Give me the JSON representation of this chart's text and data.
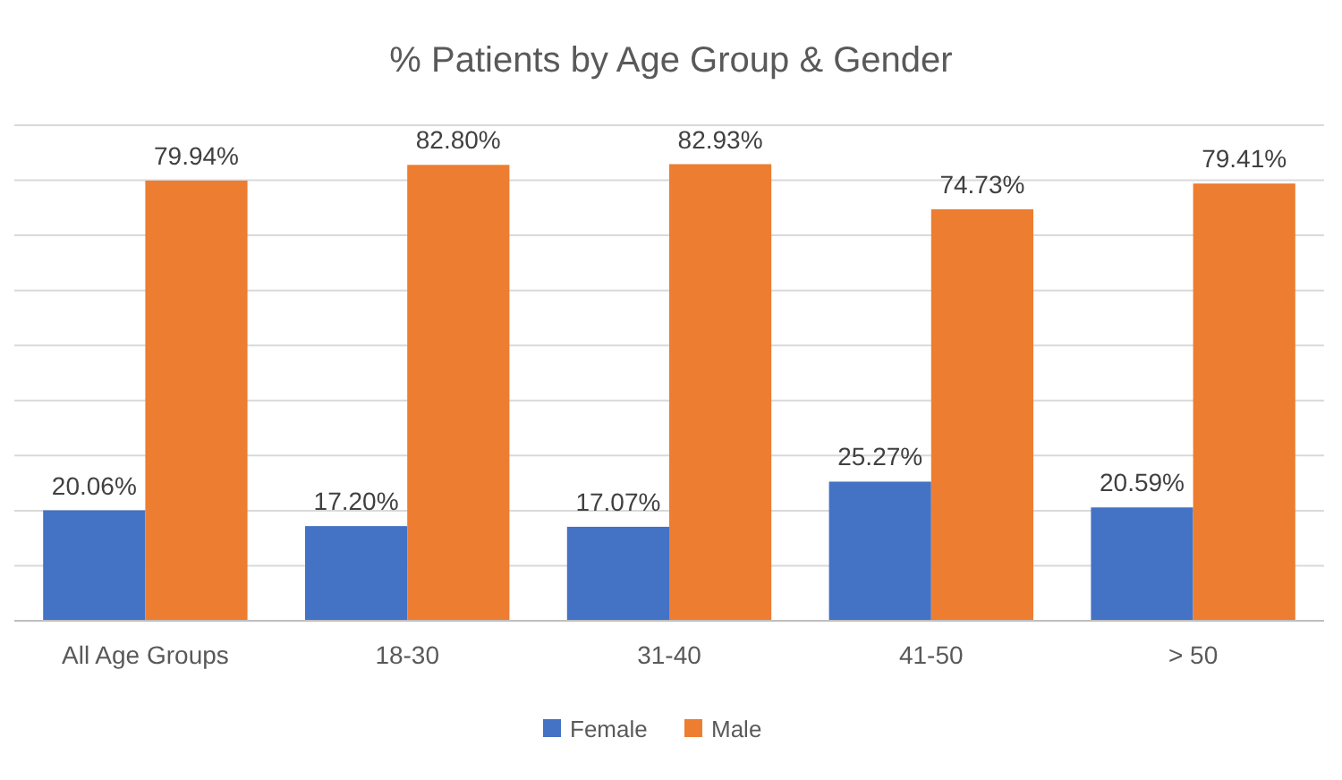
{
  "chart_data": {
    "type": "bar",
    "title": "% Patients by Age Group & Gender",
    "categories": [
      "All Age Groups",
      "18-30",
      "31-40",
      "41-50",
      "> 50"
    ],
    "series": [
      {
        "name": "Female",
        "color": "#4472c4",
        "values": [
          20.06,
          17.2,
          17.07,
          25.27,
          20.59
        ],
        "value_labels": [
          "20.06%",
          "17.20%",
          "17.07%",
          "25.27%",
          "20.59%"
        ]
      },
      {
        "name": "Male",
        "color": "#ed7d31",
        "values": [
          79.94,
          82.8,
          82.93,
          74.73,
          79.41
        ],
        "value_labels": [
          "79.94%",
          "82.80%",
          "82.93%",
          "74.73%",
          "79.41%"
        ]
      }
    ],
    "ylim": [
      0,
      90
    ],
    "yticks": [
      {
        "value": 0,
        "label": null
      },
      {
        "value": 10,
        "label": null
      },
      {
        "value": 20,
        "label": null
      },
      {
        "value": 30,
        "label": null
      },
      {
        "value": 40,
        "label": null
      },
      {
        "value": 50,
        "label": null
      },
      {
        "value": 60,
        "label": null
      },
      {
        "value": 70,
        "label": null
      },
      {
        "value": 80,
        "label": null
      },
      {
        "value": 90,
        "label": null
      }
    ],
    "grid": "y",
    "legend": "bottom"
  }
}
